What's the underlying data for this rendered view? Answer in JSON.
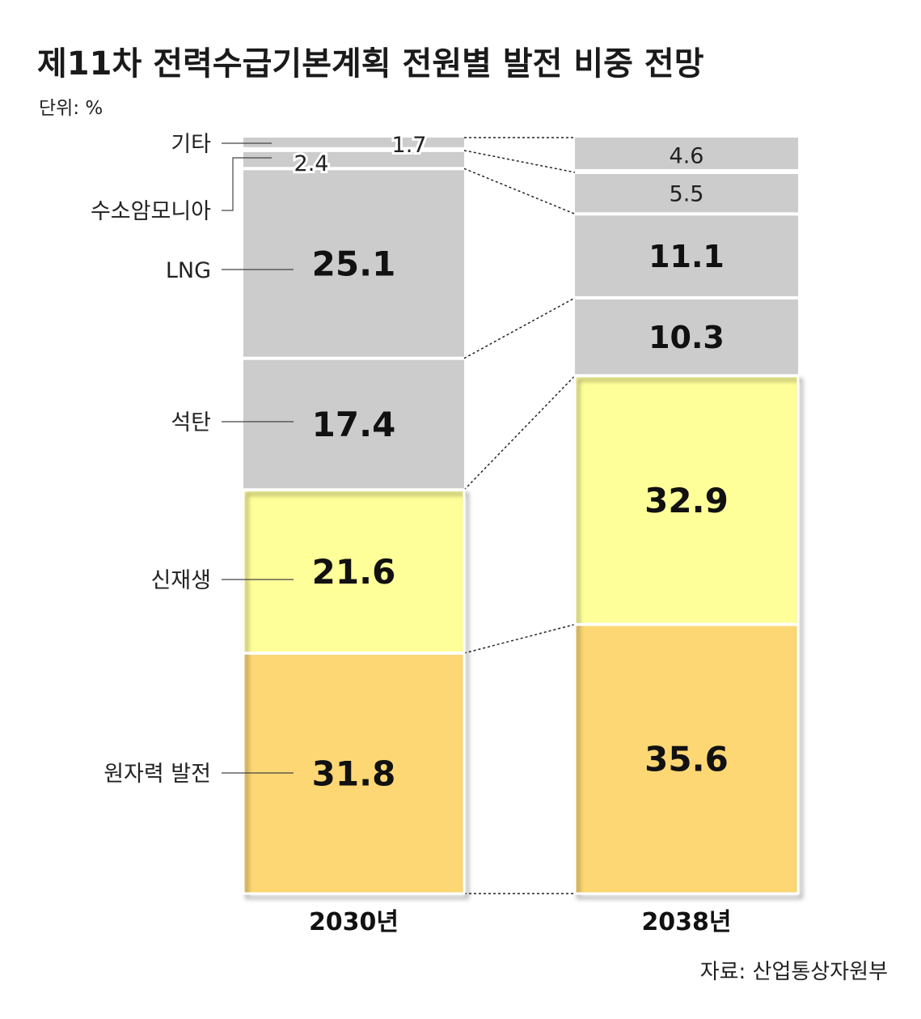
{
  "chart_data": {
    "type": "bar",
    "stacked": true,
    "title": "제11차 전력수급기본계획 전원별 발전 비중 전망",
    "unit_label": "단위: %",
    "categories": [
      "2030년",
      "2038년"
    ],
    "series": [
      {
        "name": "원자력 발전",
        "values": [
          31.8,
          35.6
        ],
        "color": "#fcd773"
      },
      {
        "name": "신재생",
        "values": [
          21.6,
          32.9
        ],
        "color": "#ffff99"
      },
      {
        "name": "석탄",
        "values": [
          17.4,
          10.3
        ],
        "color": "#cccccc"
      },
      {
        "name": "LNG",
        "values": [
          25.1,
          11.1
        ],
        "color": "#cccccc"
      },
      {
        "name": "수소암모니아",
        "values": [
          2.4,
          5.5
        ],
        "color": "#cccccc"
      },
      {
        "name": "기타",
        "values": [
          1.7,
          4.6
        ],
        "color": "#cccccc"
      }
    ],
    "source": "자료: 산업통상자원부"
  }
}
